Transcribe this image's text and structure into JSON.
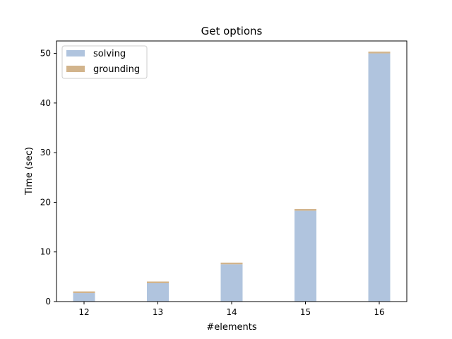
{
  "chart_data": {
    "type": "bar",
    "title": "Get options",
    "xlabel": "#elements",
    "ylabel": "Time (sec)",
    "categories": [
      "12",
      "13",
      "14",
      "15",
      "16"
    ],
    "ylim": [
      0,
      52.5
    ],
    "yticks": [
      0,
      10,
      20,
      30,
      40,
      50
    ],
    "stacked": true,
    "grid": false,
    "legend": "top-left",
    "series": [
      {
        "name": "solving",
        "color": "#b0c4de",
        "values": [
          1.7,
          3.7,
          7.5,
          18.3,
          50.0
        ]
      },
      {
        "name": "grounding",
        "color": "#d2b48c",
        "values": [
          0.35,
          0.35,
          0.35,
          0.35,
          0.35
        ]
      }
    ]
  }
}
